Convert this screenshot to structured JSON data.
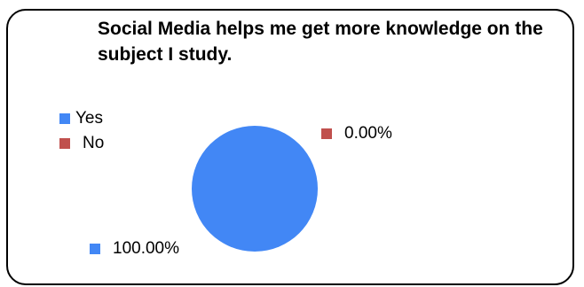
{
  "chart_data": {
    "type": "pie",
    "title": "Social Media helps me get more knowledge on the subject I study.",
    "categories": [
      "Yes",
      "No"
    ],
    "values": [
      100.0,
      0.0
    ],
    "data_labels": [
      "100.00%",
      "0.00%"
    ],
    "colors": [
      "#4287f5",
      "#c0504d"
    ],
    "legend_position": "left"
  }
}
